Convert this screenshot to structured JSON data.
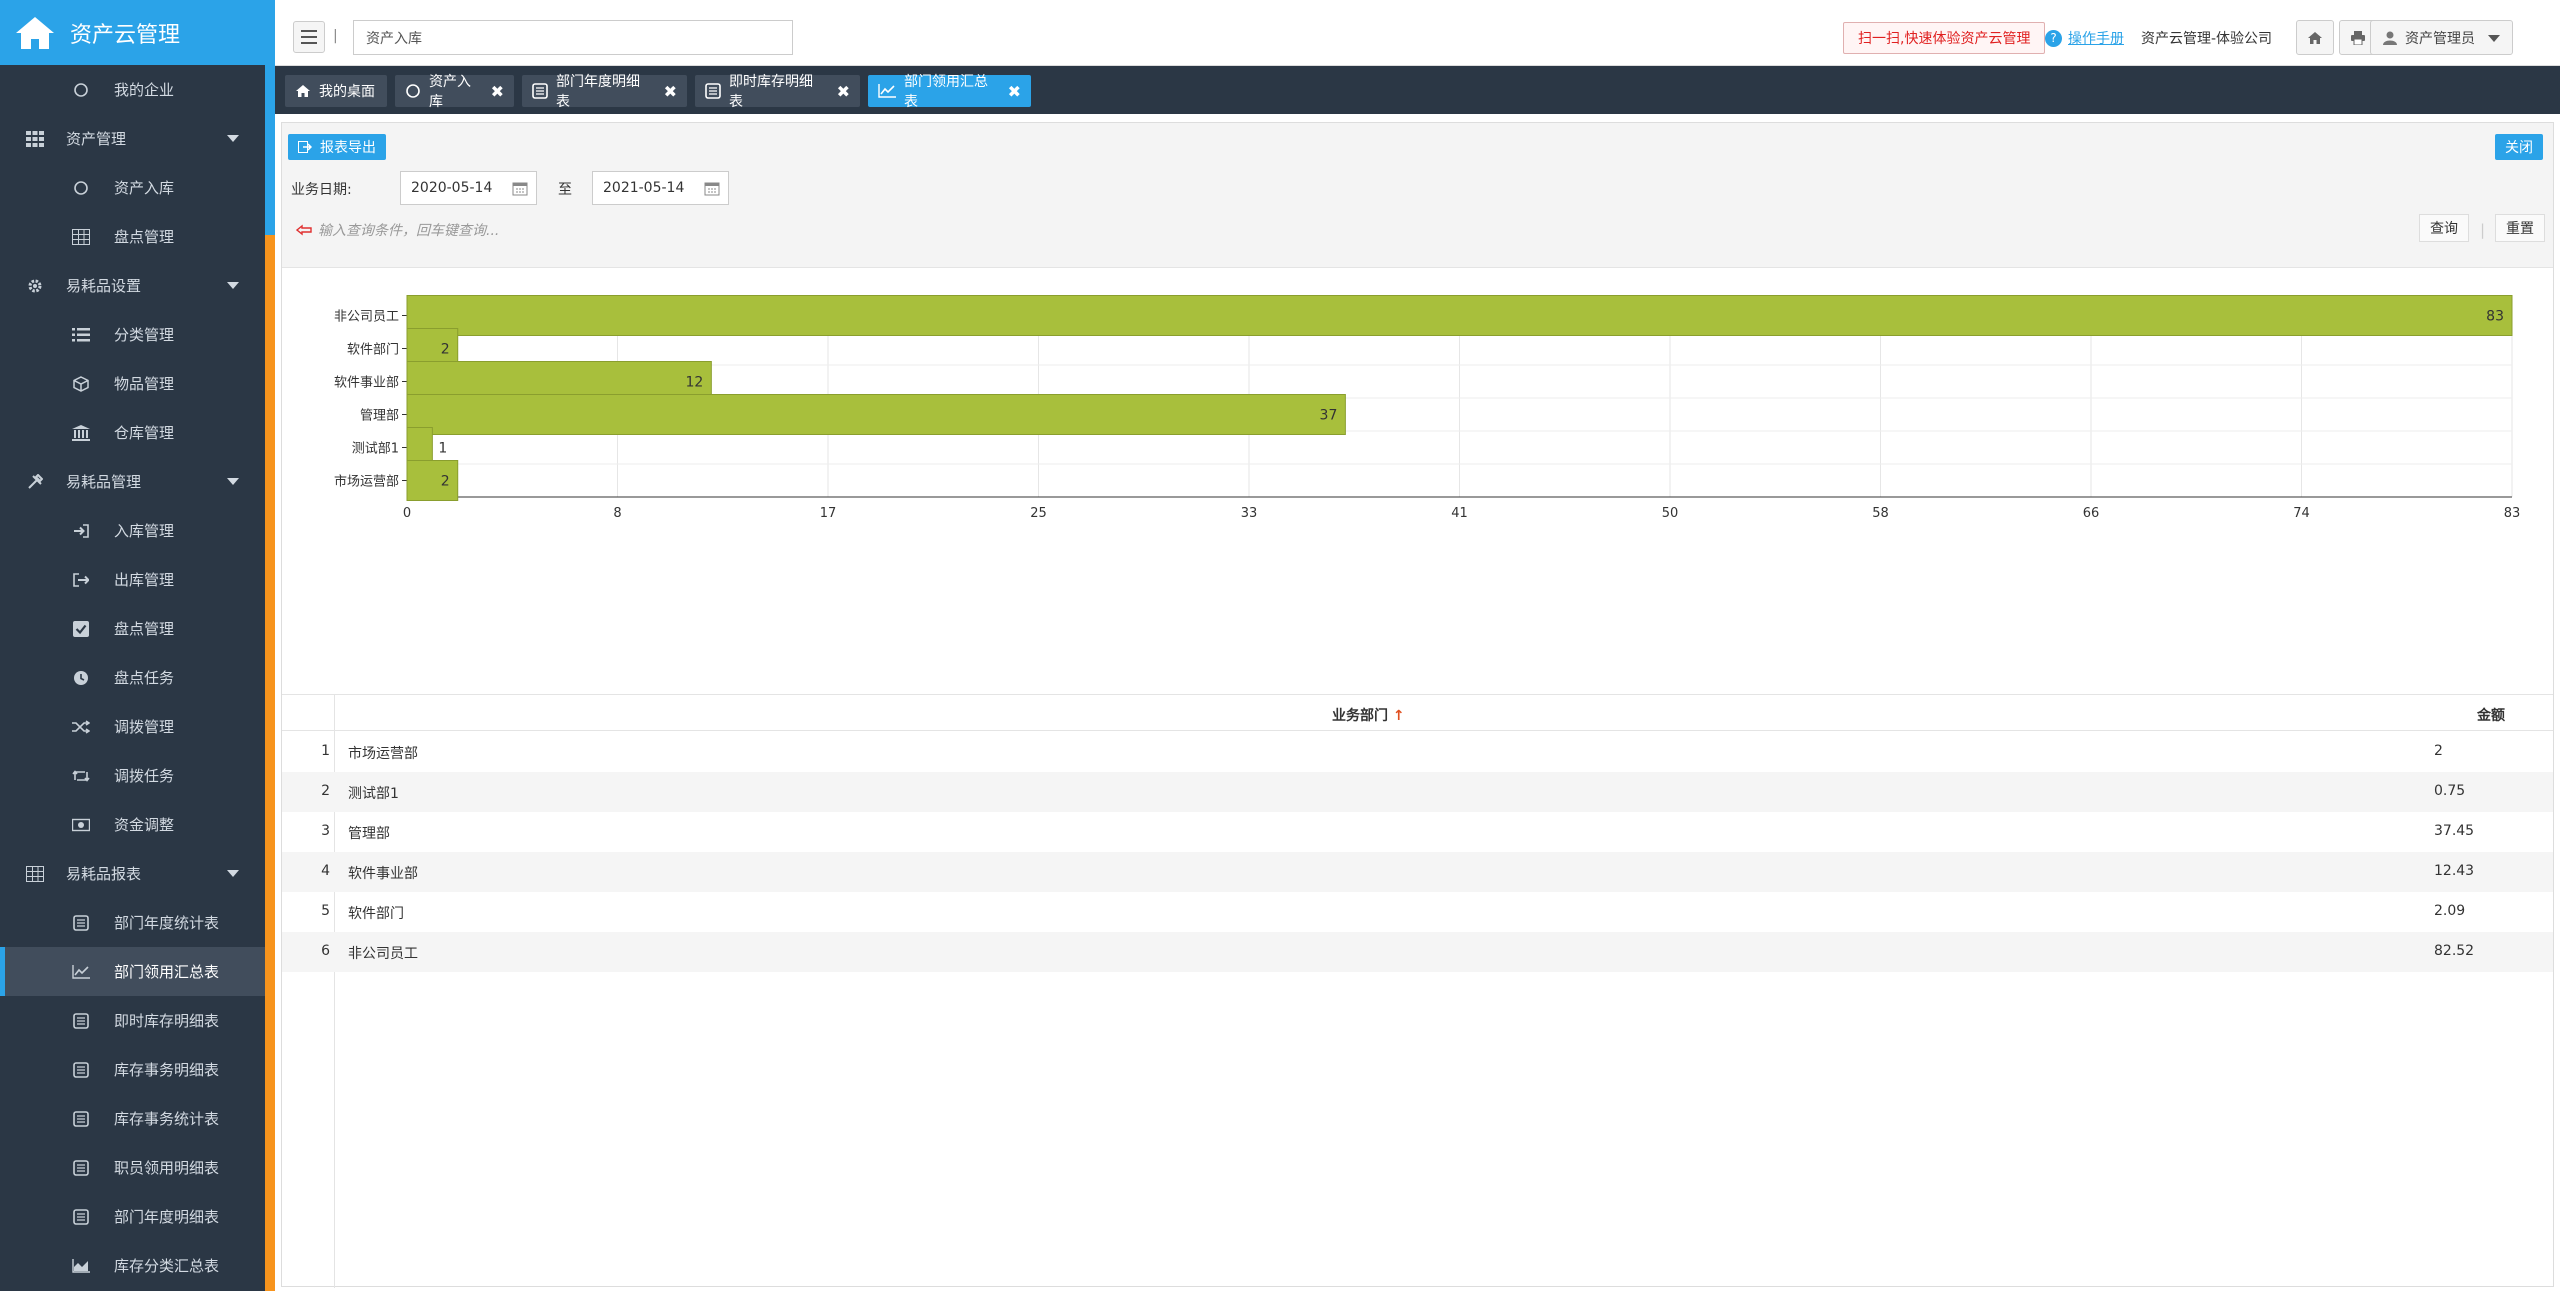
{
  "app": {
    "title": "资产云管理"
  },
  "sidebar": {
    "items": [
      {
        "label": "我的企业",
        "icon": "circle-icon",
        "type": "sub"
      },
      {
        "label": "资产管理",
        "icon": "grid-icon",
        "type": "group"
      },
      {
        "label": "资产入库",
        "icon": "circle-icon",
        "type": "sub"
      },
      {
        "label": "盘点管理",
        "icon": "table-icon",
        "type": "sub"
      },
      {
        "label": "易耗品设置",
        "icon": "gear-icon",
        "type": "group"
      },
      {
        "label": "分类管理",
        "icon": "list-icon",
        "type": "sub"
      },
      {
        "label": "物品管理",
        "icon": "cube-icon",
        "type": "sub"
      },
      {
        "label": "仓库管理",
        "icon": "bank-icon",
        "type": "sub"
      },
      {
        "label": "易耗品管理",
        "icon": "tools-icon",
        "type": "group"
      },
      {
        "label": "入库管理",
        "icon": "sign-in-icon",
        "type": "sub"
      },
      {
        "label": "出库管理",
        "icon": "sign-out-icon",
        "type": "sub"
      },
      {
        "label": "盘点管理",
        "icon": "check-square-icon",
        "type": "sub"
      },
      {
        "label": "盘点任务",
        "icon": "clock-icon",
        "type": "sub"
      },
      {
        "label": "调拨管理",
        "icon": "shuffle-icon",
        "type": "sub"
      },
      {
        "label": "调拨任务",
        "icon": "retweet-icon",
        "type": "sub"
      },
      {
        "label": "资金调整",
        "icon": "money-icon",
        "type": "sub"
      },
      {
        "label": "易耗品报表",
        "icon": "table-icon",
        "type": "group"
      },
      {
        "label": "部门年度统计表",
        "icon": "doc-icon",
        "type": "sub"
      },
      {
        "label": "部门领用汇总表",
        "icon": "line-chart-icon",
        "type": "sub",
        "active": true
      },
      {
        "label": "即时库存明细表",
        "icon": "doc-icon",
        "type": "sub"
      },
      {
        "label": "库存事务明细表",
        "icon": "doc-icon",
        "type": "sub"
      },
      {
        "label": "库存事务统计表",
        "icon": "doc-icon",
        "type": "sub"
      },
      {
        "label": "职员领用明细表",
        "icon": "doc-icon",
        "type": "sub"
      },
      {
        "label": "部门年度明细表",
        "icon": "doc-icon",
        "type": "sub"
      },
      {
        "label": "库存分类汇总表",
        "icon": "area-chart-icon",
        "type": "sub"
      }
    ]
  },
  "topbar": {
    "search_value": "资产入库",
    "promo": "扫一扫,快速体验资产云管理",
    "manual": "操作手册",
    "company": "资产云管理-体验公司",
    "user": "资产管理员"
  },
  "tabs": [
    {
      "label": "我的桌面",
      "icon": "home-icon",
      "closable": false
    },
    {
      "label": "资产入库",
      "icon": "circle-icon",
      "closable": true
    },
    {
      "label": "部门年度明细表",
      "icon": "doc-icon",
      "closable": true
    },
    {
      "label": "即时库存明细表",
      "icon": "doc-icon",
      "closable": true
    },
    {
      "label": "部门领用汇总表",
      "icon": "line-chart-icon",
      "closable": true,
      "active": true
    }
  ],
  "toolbar": {
    "export": "报表导出",
    "close": "关闭",
    "date_label": "业务日期:",
    "date_from": "2020-05-14",
    "to_label": "至",
    "date_to": "2021-05-14",
    "hint": "输入查询条件，回车键查询...",
    "query": "查询",
    "reset": "重置"
  },
  "chart_data": {
    "type": "bar",
    "orientation": "horizontal",
    "categories": [
      "非公司员工",
      "软件部门",
      "软件事业部",
      "管理部",
      "测试部1",
      "市场运营部"
    ],
    "values": [
      83,
      2,
      12,
      37,
      1,
      2
    ],
    "xticks": [
      "0",
      "8",
      "17",
      "25",
      "33",
      "41",
      "50",
      "58",
      "66",
      "74",
      "83"
    ],
    "xlim": [
      0,
      83
    ],
    "grid": true,
    "color": "#a8bf3c"
  },
  "table": {
    "headers": {
      "dept": "业务部门",
      "sort": "↑",
      "amount": "金额"
    },
    "rows": [
      {
        "n": "1",
        "dept": "市场运营部",
        "amount": "2"
      },
      {
        "n": "2",
        "dept": "测试部1",
        "amount": "0.75"
      },
      {
        "n": "3",
        "dept": "管理部",
        "amount": "37.45"
      },
      {
        "n": "4",
        "dept": "软件事业部",
        "amount": "12.43"
      },
      {
        "n": "5",
        "dept": "软件部门",
        "amount": "2.09"
      },
      {
        "n": "6",
        "dept": "非公司员工",
        "amount": "82.52"
      }
    ]
  }
}
